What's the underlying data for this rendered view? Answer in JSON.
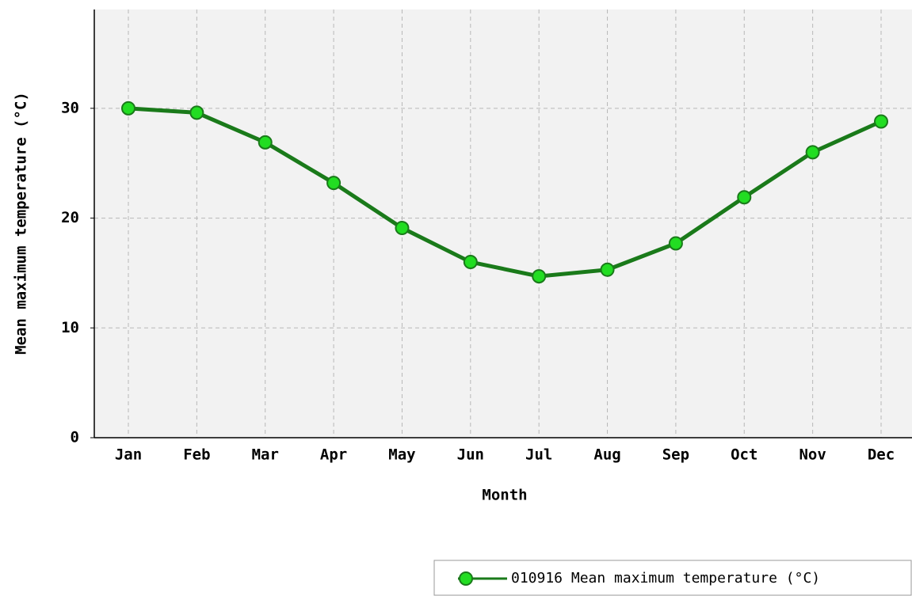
{
  "chart_data": {
    "type": "line",
    "xlabel": "Month",
    "ylabel": "Mean maximum temperature (°C)",
    "categories": [
      "Jan",
      "Feb",
      "Mar",
      "Apr",
      "May",
      "Jun",
      "Jul",
      "Aug",
      "Sep",
      "Oct",
      "Nov",
      "Dec"
    ],
    "series": [
      {
        "name": "010916 Mean maximum temperature (°C)",
        "color": "#1a7a1a",
        "marker_color": "#22dd22",
        "values": [
          30.0,
          29.6,
          26.9,
          23.2,
          19.1,
          16.0,
          14.7,
          15.3,
          17.7,
          21.9,
          26.0,
          28.8
        ]
      }
    ],
    "ylim": [
      0,
      39
    ],
    "yticks": [
      0,
      10,
      20,
      30
    ],
    "grid": true,
    "legend": "bottom-right"
  }
}
